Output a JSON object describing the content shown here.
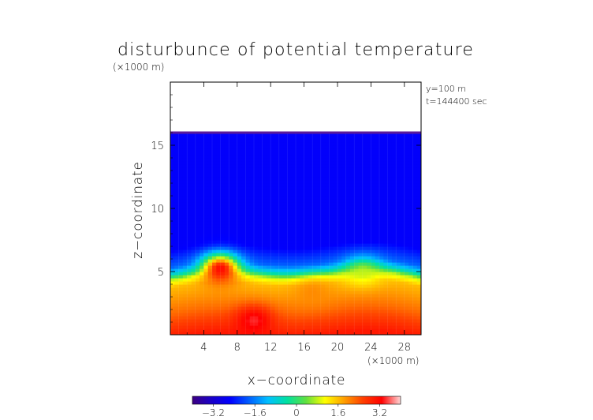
{
  "chart_data": {
    "type": "heatmap",
    "title": "disturbunce of potential temperature",
    "y_unit": "(×1000 m)",
    "x_unit": "(×1000 m)",
    "xlabel": "x−coordinate",
    "ylabel": "z−coordinate",
    "annotations": [
      "y=100 m",
      "t=144400 sec"
    ],
    "x_range": [
      0,
      30
    ],
    "y_range": [
      0,
      20
    ],
    "x_ticks": [
      4,
      8,
      12,
      16,
      20,
      24,
      28
    ],
    "x_tick_labels": [
      "4",
      "8",
      "12",
      "16",
      "20",
      "24",
      "28"
    ],
    "y_ticks": [
      5,
      10,
      15
    ],
    "y_tick_labels": [
      "5",
      "10",
      "15"
    ],
    "colorbar": {
      "range": [
        -4.0,
        4.0
      ],
      "ticks": [
        -3.2,
        -1.6,
        0,
        1.6,
        3.2
      ],
      "tick_labels": [
        "−3.2",
        "−1.6",
        "0",
        "1.6",
        "3.2"
      ],
      "colors": [
        "#3c0082",
        "#1a00c8",
        "#0000ff",
        "#0060ff",
        "#00c0ff",
        "#00e0a0",
        "#60e040",
        "#ffff00",
        "#ffa000",
        "#ff4000",
        "#ff0000",
        "#ffd8d8"
      ]
    },
    "field_top_z": 16,
    "field": {
      "description_levels_by_height": [
        {
          "z": 0.0,
          "value": 3.0
        },
        {
          "z": 2.0,
          "value": 2.2
        },
        {
          "z": 4.0,
          "value": 1.6
        },
        {
          "z": 4.6,
          "value": 0.8
        },
        {
          "z": 5.0,
          "value": -0.6
        },
        {
          "z": 5.6,
          "value": -1.8
        },
        {
          "z": 7.0,
          "value": -2.6
        },
        {
          "z": 16.0,
          "value": -2.6
        }
      ],
      "warm_anomalies": [
        {
          "x": 6,
          "z": 5.3,
          "value": 3.6
        },
        {
          "x": 10,
          "z": 1.2,
          "value": 3.5
        },
        {
          "x": 17,
          "z": 3.4,
          "value": 2.0
        },
        {
          "x": 23,
          "z": 5.0,
          "value": 0.8
        }
      ]
    }
  }
}
